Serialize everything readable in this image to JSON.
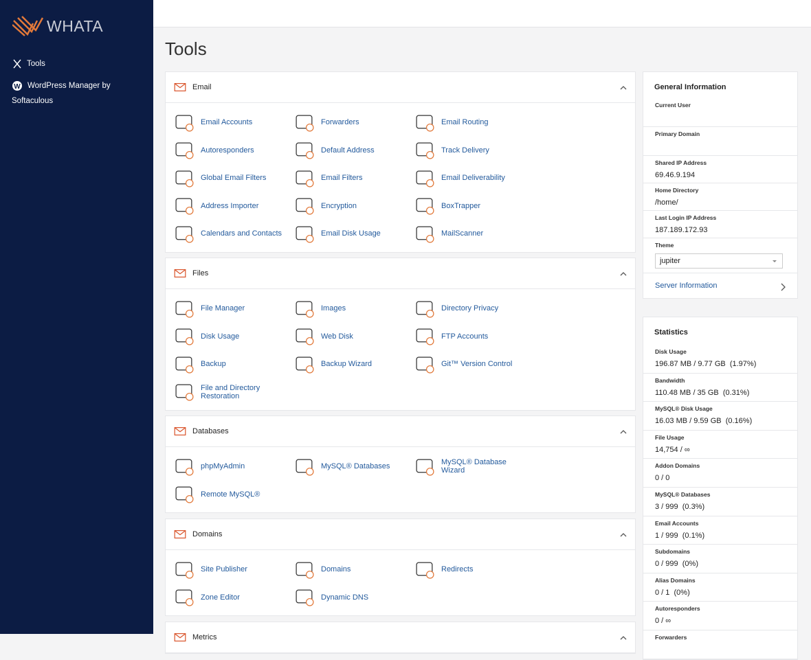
{
  "sidebar": {
    "logo": "WHATA",
    "nav": [
      "Tools",
      "WordPress Manager by Softaculous"
    ]
  },
  "page_title": "Tools",
  "sections": [
    {
      "title": "Email",
      "items": [
        "Email Accounts",
        "Forwarders",
        "Email Routing",
        "Autoresponders",
        "Default Address",
        "Track Delivery",
        "Global Email Filters",
        "Email Filters",
        "Email Deliverability",
        "Address Importer",
        "Encryption",
        "BoxTrapper",
        "Calendars and Contacts",
        "Email Disk Usage",
        "MailScanner"
      ]
    },
    {
      "title": "Files",
      "items": [
        "File Manager",
        "Images",
        "Directory Privacy",
        "Disk Usage",
        "Web Disk",
        "FTP Accounts",
        "Backup",
        "Backup Wizard",
        "Git™ Version Control",
        "File and Directory Restoration"
      ]
    },
    {
      "title": "Databases",
      "items": [
        "phpMyAdmin",
        "MySQL® Databases",
        "MySQL® Database Wizard",
        "Remote MySQL®"
      ]
    },
    {
      "title": "Domains",
      "items": [
        "Site Publisher",
        "Domains",
        "Redirects",
        "Zone Editor",
        "Dynamic DNS"
      ]
    },
    {
      "title": "Metrics",
      "items": []
    }
  ],
  "general_info": {
    "title": "General Information",
    "fields": [
      {
        "label": "Current User"
      },
      {
        "label": "Primary Domain"
      },
      {
        "label": "Shared IP Address",
        "value": "69.46.9.194"
      },
      {
        "label": "Home Directory",
        "value": "/home/"
      },
      {
        "label": "Last Login IP Address",
        "value": "187.189.172.93"
      },
      {
        "label": "Theme",
        "value": "jupiter"
      }
    ],
    "link": "Server Information"
  },
  "statistics": {
    "title": "Statistics",
    "items": [
      {
        "label": "Disk Usage",
        "value": "196.87 MB / 9.77 GB  (1.97%)"
      },
      {
        "label": "Bandwidth",
        "value": "110.48 MB / 35 GB  (0.31%)"
      },
      {
        "label": "MySQL® Disk Usage",
        "value": "16.03 MB / 9.59 GB  (0.16%)"
      },
      {
        "label": "File Usage",
        "value": "14,754 / ∞"
      },
      {
        "label": "Addon Domains",
        "value": "0 / 0"
      },
      {
        "label": "MySQL® Databases",
        "value": "3 / 999  (0.3%)"
      },
      {
        "label": "Email Accounts",
        "value": "1 / 999  (0.1%)"
      },
      {
        "label": "Subdomains",
        "value": "0 / 999  (0%)"
      },
      {
        "label": "Alias Domains",
        "value": "0 / 1  (0%)"
      },
      {
        "label": "Autoresponders",
        "value": "0 / ∞"
      },
      {
        "label": "Forwarders"
      }
    ]
  }
}
